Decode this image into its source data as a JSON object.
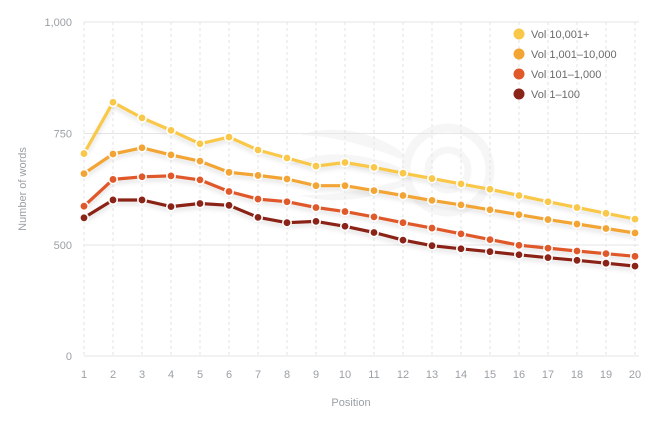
{
  "chart_data": {
    "type": "line",
    "xlabel": "Position",
    "ylabel": "Number of words",
    "ylim": [
      0,
      1000
    ],
    "y_ticks": [
      0,
      500,
      750,
      1000
    ],
    "y_tick_labels": [
      "0",
      "500",
      "750",
      "1,000"
    ],
    "x": [
      1,
      2,
      3,
      4,
      5,
      6,
      7,
      8,
      9,
      10,
      11,
      12,
      13,
      14,
      15,
      16,
      17,
      18,
      19,
      20
    ],
    "grid": true,
    "legend_position": "top-right",
    "series": [
      {
        "name": "Vol 10,001+",
        "color": "#f9c84a",
        "values": [
          705,
          820,
          785,
          757,
          727,
          742,
          713,
          695,
          677,
          685,
          674,
          661,
          649,
          637,
          625,
          611,
          597,
          584,
          571,
          558
        ]
      },
      {
        "name": "Vol 1,001–10,000",
        "color": "#f2a534",
        "values": [
          660,
          704,
          718,
          702,
          688,
          663,
          656,
          648,
          633,
          633,
          622,
          611,
          600,
          590,
          579,
          568,
          557,
          547,
          537,
          527
        ]
      },
      {
        "name": "Vol 101–1,000",
        "color": "#e0592a",
        "values": [
          587,
          647,
          653,
          655,
          646,
          620,
          603,
          597,
          584,
          575,
          563,
          550,
          538,
          525,
          512,
          499,
          486,
          473,
          461,
          449
        ]
      },
      {
        "name": "Vol 1–100",
        "color": "#8a2418",
        "values": [
          561,
          601,
          601,
          586,
          593,
          589,
          562,
          550,
          553,
          542,
          528,
          511,
          497,
          483,
          470,
          456,
          443,
          431,
          418,
          405
        ]
      }
    ]
  }
}
